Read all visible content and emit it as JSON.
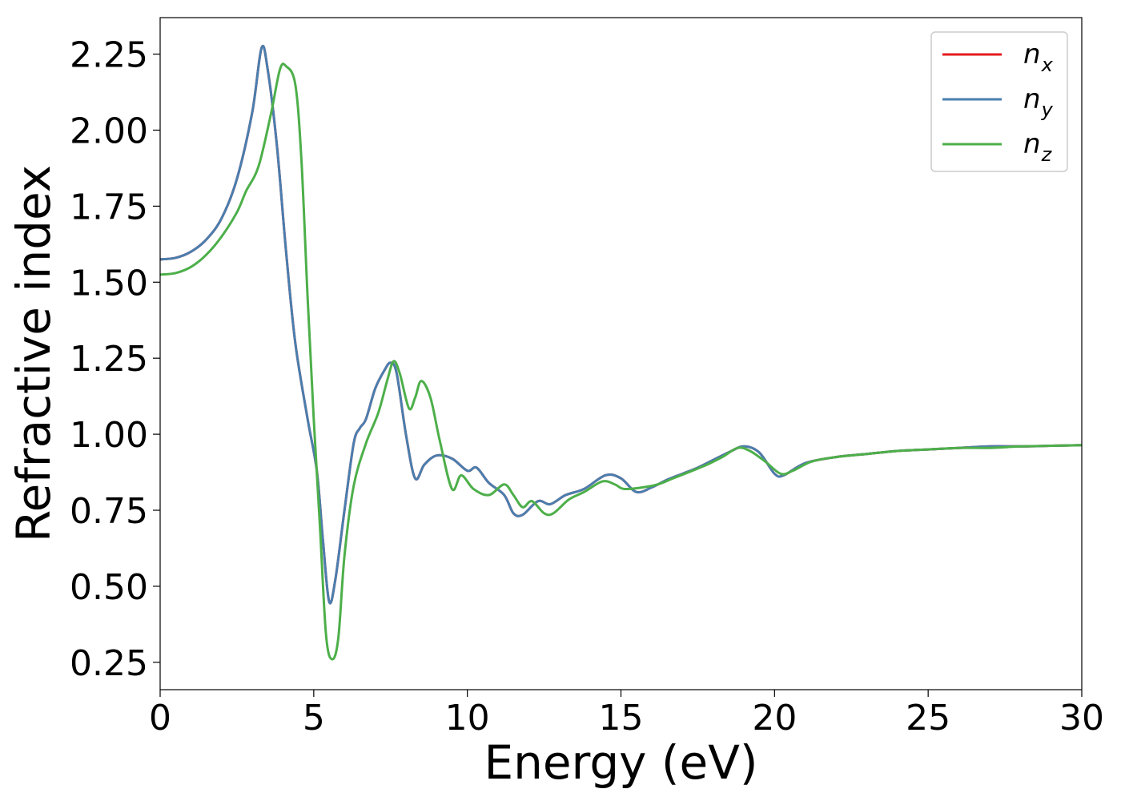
{
  "chart_data": {
    "type": "line",
    "title": "",
    "xlabel": "Energy (eV)",
    "ylabel": "Refractive index",
    "xlim": [
      0,
      30
    ],
    "ylim": [
      0.16,
      2.37
    ],
    "xticks": [
      0,
      5,
      10,
      15,
      20,
      25,
      30
    ],
    "xtick_labels": [
      "0",
      "5",
      "10",
      "15",
      "20",
      "25",
      "30"
    ],
    "yticks": [
      0.25,
      0.5,
      0.75,
      1.0,
      1.25,
      1.5,
      1.75,
      2.0,
      2.25
    ],
    "ytick_labels": [
      "0.25",
      "0.50",
      "0.75",
      "1.00",
      "1.25",
      "1.50",
      "1.75",
      "2.00",
      "2.25"
    ],
    "grid": false,
    "legend_position": "top-right",
    "series": [
      {
        "name": "n",
        "subscript": "x",
        "color": "#e41a1c",
        "points": [
          [
            0,
            1.575
          ],
          [
            0.5,
            1.58
          ],
          [
            1,
            1.6
          ],
          [
            1.5,
            1.64
          ],
          [
            2,
            1.71
          ],
          [
            2.5,
            1.84
          ],
          [
            3,
            2.06
          ],
          [
            3.3,
            2.27
          ],
          [
            3.5,
            2.2
          ],
          [
            3.8,
            1.95
          ],
          [
            4.1,
            1.6
          ],
          [
            4.4,
            1.3
          ],
          [
            4.8,
            1.05
          ],
          [
            5.1,
            0.88
          ],
          [
            5.3,
            0.65
          ],
          [
            5.5,
            0.45
          ],
          [
            5.7,
            0.52
          ],
          [
            6,
            0.75
          ],
          [
            6.3,
            0.97
          ],
          [
            6.5,
            1.02
          ],
          [
            6.7,
            1.05
          ],
          [
            7,
            1.15
          ],
          [
            7.3,
            1.21
          ],
          [
            7.5,
            1.235
          ],
          [
            7.7,
            1.2
          ],
          [
            8,
            1.0
          ],
          [
            8.3,
            0.855
          ],
          [
            8.6,
            0.9
          ],
          [
            9,
            0.93
          ],
          [
            9.5,
            0.92
          ],
          [
            10,
            0.88
          ],
          [
            10.3,
            0.89
          ],
          [
            10.7,
            0.84
          ],
          [
            11.2,
            0.8
          ],
          [
            11.5,
            0.74
          ],
          [
            11.8,
            0.735
          ],
          [
            12.3,
            0.78
          ],
          [
            12.7,
            0.77
          ],
          [
            13.2,
            0.8
          ],
          [
            13.8,
            0.82
          ],
          [
            14.5,
            0.865
          ],
          [
            15,
            0.855
          ],
          [
            15.5,
            0.81
          ],
          [
            16,
            0.825
          ],
          [
            16.5,
            0.85
          ],
          [
            17,
            0.87
          ],
          [
            17.5,
            0.89
          ],
          [
            18,
            0.915
          ],
          [
            18.5,
            0.94
          ],
          [
            19,
            0.96
          ],
          [
            19.5,
            0.94
          ],
          [
            20,
            0.87
          ],
          [
            20.3,
            0.865
          ],
          [
            21,
            0.905
          ],
          [
            22,
            0.925
          ],
          [
            23,
            0.935
          ],
          [
            24,
            0.945
          ],
          [
            25,
            0.95
          ],
          [
            26,
            0.955
          ],
          [
            27,
            0.96
          ],
          [
            28,
            0.96
          ],
          [
            29,
            0.962
          ],
          [
            30,
            0.964
          ]
        ]
      },
      {
        "name": "n",
        "subscript": "y",
        "color": "#4a7eae",
        "points": [
          [
            0,
            1.575
          ],
          [
            0.5,
            1.58
          ],
          [
            1,
            1.6
          ],
          [
            1.5,
            1.64
          ],
          [
            2,
            1.71
          ],
          [
            2.5,
            1.84
          ],
          [
            3,
            2.06
          ],
          [
            3.3,
            2.27
          ],
          [
            3.5,
            2.2
          ],
          [
            3.8,
            1.95
          ],
          [
            4.1,
            1.6
          ],
          [
            4.4,
            1.3
          ],
          [
            4.8,
            1.05
          ],
          [
            5.1,
            0.88
          ],
          [
            5.3,
            0.65
          ],
          [
            5.5,
            0.45
          ],
          [
            5.7,
            0.52
          ],
          [
            6,
            0.75
          ],
          [
            6.3,
            0.97
          ],
          [
            6.5,
            1.02
          ],
          [
            6.7,
            1.05
          ],
          [
            7,
            1.15
          ],
          [
            7.3,
            1.21
          ],
          [
            7.5,
            1.235
          ],
          [
            7.7,
            1.2
          ],
          [
            8,
            1.0
          ],
          [
            8.3,
            0.855
          ],
          [
            8.6,
            0.9
          ],
          [
            9,
            0.93
          ],
          [
            9.5,
            0.92
          ],
          [
            10,
            0.88
          ],
          [
            10.3,
            0.89
          ],
          [
            10.7,
            0.84
          ],
          [
            11.2,
            0.8
          ],
          [
            11.5,
            0.74
          ],
          [
            11.8,
            0.735
          ],
          [
            12.3,
            0.78
          ],
          [
            12.7,
            0.77
          ],
          [
            13.2,
            0.8
          ],
          [
            13.8,
            0.82
          ],
          [
            14.5,
            0.865
          ],
          [
            15,
            0.855
          ],
          [
            15.5,
            0.81
          ],
          [
            16,
            0.825
          ],
          [
            16.5,
            0.85
          ],
          [
            17,
            0.87
          ],
          [
            17.5,
            0.89
          ],
          [
            18,
            0.915
          ],
          [
            18.5,
            0.94
          ],
          [
            19,
            0.96
          ],
          [
            19.5,
            0.94
          ],
          [
            20,
            0.87
          ],
          [
            20.3,
            0.865
          ],
          [
            21,
            0.905
          ],
          [
            22,
            0.925
          ],
          [
            23,
            0.935
          ],
          [
            24,
            0.945
          ],
          [
            25,
            0.95
          ],
          [
            26,
            0.955
          ],
          [
            27,
            0.96
          ],
          [
            28,
            0.96
          ],
          [
            29,
            0.962
          ],
          [
            30,
            0.964
          ]
        ]
      },
      {
        "name": "n",
        "subscript": "z",
        "color": "#4daf4a",
        "points": [
          [
            0,
            1.525
          ],
          [
            0.5,
            1.53
          ],
          [
            1,
            1.55
          ],
          [
            1.5,
            1.59
          ],
          [
            2,
            1.65
          ],
          [
            2.5,
            1.73
          ],
          [
            2.8,
            1.8
          ],
          [
            3.2,
            1.88
          ],
          [
            3.6,
            2.05
          ],
          [
            3.9,
            2.2
          ],
          [
            4.1,
            2.21
          ],
          [
            4.4,
            2.15
          ],
          [
            4.6,
            1.9
          ],
          [
            4.8,
            1.45
          ],
          [
            5.0,
            1.05
          ],
          [
            5.2,
            0.7
          ],
          [
            5.4,
            0.34
          ],
          [
            5.6,
            0.26
          ],
          [
            5.8,
            0.33
          ],
          [
            6.0,
            0.6
          ],
          [
            6.3,
            0.83
          ],
          [
            6.7,
            0.97
          ],
          [
            7.1,
            1.07
          ],
          [
            7.4,
            1.18
          ],
          [
            7.6,
            1.24
          ],
          [
            7.8,
            1.2
          ],
          [
            8.1,
            1.085
          ],
          [
            8.3,
            1.12
          ],
          [
            8.5,
            1.175
          ],
          [
            8.8,
            1.12
          ],
          [
            9.1,
            0.98
          ],
          [
            9.5,
            0.82
          ],
          [
            9.8,
            0.865
          ],
          [
            10.2,
            0.82
          ],
          [
            10.7,
            0.8
          ],
          [
            11.2,
            0.835
          ],
          [
            11.5,
            0.8
          ],
          [
            11.8,
            0.76
          ],
          [
            12.1,
            0.78
          ],
          [
            12.5,
            0.74
          ],
          [
            12.8,
            0.74
          ],
          [
            13.3,
            0.785
          ],
          [
            13.8,
            0.81
          ],
          [
            14.4,
            0.845
          ],
          [
            14.8,
            0.835
          ],
          [
            15.1,
            0.82
          ],
          [
            15.7,
            0.825
          ],
          [
            16.2,
            0.835
          ],
          [
            16.7,
            0.855
          ],
          [
            17.2,
            0.875
          ],
          [
            17.8,
            0.9
          ],
          [
            18.3,
            0.925
          ],
          [
            18.8,
            0.955
          ],
          [
            19.2,
            0.945
          ],
          [
            19.7,
            0.91
          ],
          [
            20.2,
            0.87
          ],
          [
            20.6,
            0.88
          ],
          [
            21.2,
            0.91
          ],
          [
            22,
            0.925
          ],
          [
            23,
            0.935
          ],
          [
            24,
            0.945
          ],
          [
            25,
            0.95
          ],
          [
            26,
            0.955
          ],
          [
            27,
            0.955
          ],
          [
            28,
            0.96
          ],
          [
            29,
            0.962
          ],
          [
            30,
            0.964
          ]
        ]
      }
    ]
  }
}
